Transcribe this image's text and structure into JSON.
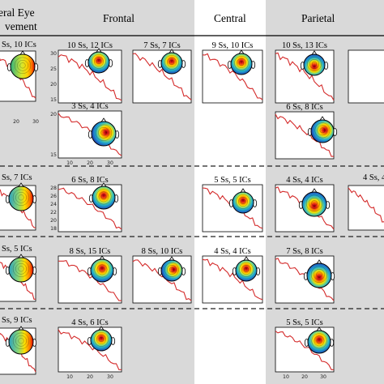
{
  "columns": [
    {
      "key": "lateral",
      "title_line1": "eral Eye",
      "title_line2": "vement"
    },
    {
      "key": "frontal",
      "title": "Frontal"
    },
    {
      "key": "central",
      "title": "Central"
    },
    {
      "key": "parietal",
      "title": "Parietal"
    }
  ],
  "rows": [
    {
      "lateral": "Ss, 10 ICs",
      "frontal": [
        "10 Ss, 12 ICs",
        "7 Ss, 7 ICs",
        "3 Ss, 4 ICs"
      ],
      "central": "9 Ss, 10 ICs",
      "parietal": [
        "10 Ss, 13 ICs",
        "6 Ss, 8 ICs"
      ]
    },
    {
      "lateral": "Ss, 7 ICs",
      "frontal": [
        "6 Ss, 8 ICs"
      ],
      "central": "5 Ss, 5 ICs",
      "parietal": [
        "4 Ss, 4 ICs",
        "4 Ss, 4"
      ]
    },
    {
      "lateral": "Ss, 5 ICs",
      "frontal": [
        "8 Ss, 15 ICs",
        "8 Ss, 10 ICs"
      ],
      "central": "4 Ss, 4 ICs",
      "parietal": [
        "7 Ss, 8 ICs"
      ]
    },
    {
      "lateral": "Ss, 9 ICs",
      "frontal": [
        "4 Ss, 6 ICs"
      ],
      "central": "",
      "parietal": [
        "5 Ss, 5 ICs"
      ]
    }
  ],
  "ticks": {
    "x_ticks": [
      "10",
      "20",
      "30"
    ],
    "y_ticks_a": [
      "30",
      "25",
      "20",
      "15"
    ],
    "y_ticks_b": [
      "28",
      "26",
      "24",
      "22",
      "20",
      "18"
    ],
    "y_ticks_c": [
      "20",
      "15"
    ],
    "lateral_x": [
      "20",
      "30"
    ]
  },
  "colors": {
    "panel_grey": "#d9d9d9",
    "curve": "#d42a2a",
    "line": "#000000"
  }
}
